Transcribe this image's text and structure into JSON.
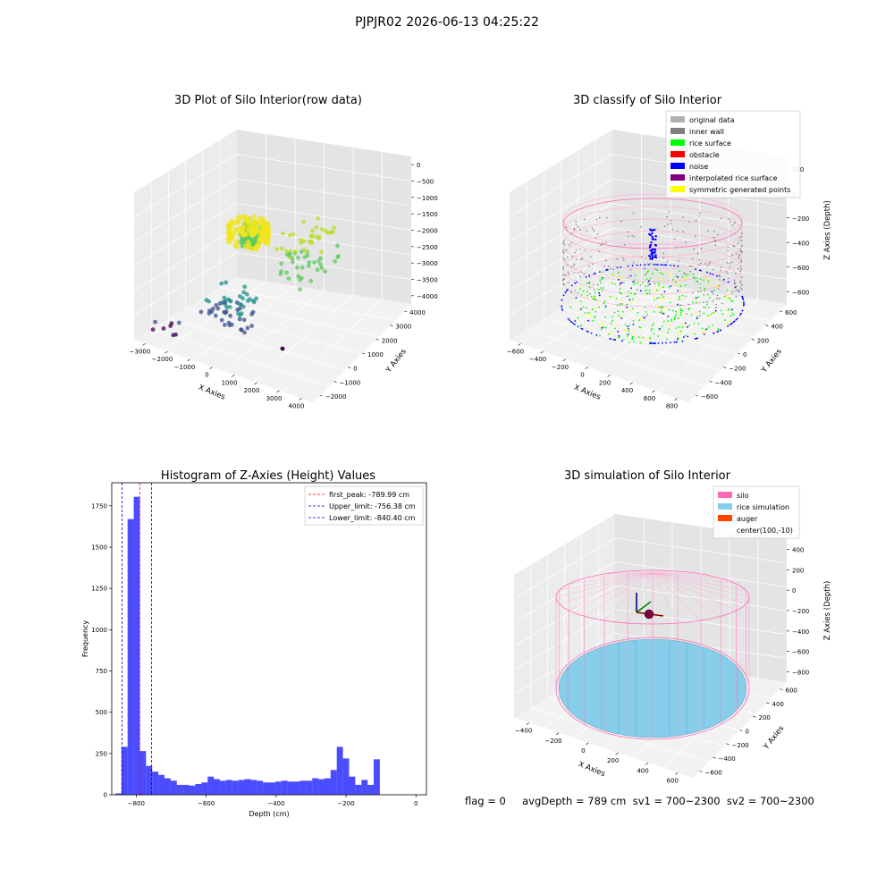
{
  "figure": {
    "suptitle": "PJPJR02 2026-06-13 04:25:22",
    "footer": "flag = 0     avgDepth = 789 cm  sv1 = 700~2300  sv2 = 700~2300"
  },
  "chart_data": [
    {
      "type": "scatter3d",
      "title": "3D Plot of Silo Interior(row data)",
      "xlabel": "X Axies",
      "ylabel": "Y Axies",
      "zlabel": "Z Axies (Depth)",
      "x_ticks": [
        "−3000",
        "−2000",
        "−1000",
        "0",
        "1000",
        "2000",
        "3000",
        "4000"
      ],
      "y_ticks": [
        "−2000",
        "−1000",
        "0",
        "1000",
        "2000",
        "3000",
        "4000"
      ],
      "z_ticks": [
        "0",
        "−500",
        "−1000",
        "−1500",
        "−2000",
        "−2500",
        "−3000",
        "−3500",
        "−4000"
      ],
      "xlim": [
        -3500,
        4500
      ],
      "ylim": [
        -2000,
        4500
      ],
      "zlim": [
        -4000,
        0
      ],
      "colormap": "viridis",
      "clusters": [
        {
          "x": [
            -600,
            0
          ],
          "y": [
            500,
            1200
          ],
          "z": [
            -1500,
            -900
          ],
          "count": 140
        },
        {
          "x": [
            1500,
            2700
          ],
          "y": [
            -300,
            2500
          ],
          "z": [
            -1800,
            -600
          ],
          "count": 70
        },
        {
          "x": [
            -1200,
            900
          ],
          "y": [
            -1500,
            400
          ],
          "z": [
            -3200,
            -2400
          ],
          "count": 60
        },
        {
          "x": [
            -3000,
            -2200
          ],
          "y": [
            -1600,
            -800
          ],
          "z": [
            -4000,
            -3500
          ],
          "count": 8
        }
      ]
    },
    {
      "type": "scatter3d",
      "title": "3D classify of Silo Interior",
      "xlabel": "X Axies",
      "ylabel": "Y Axies",
      "zlabel": "Z Axies (Depth)",
      "x_ticks": [
        "−600",
        "−400",
        "−200",
        "0",
        "200",
        "400",
        "600",
        "800"
      ],
      "y_ticks": [
        "−600",
        "−400",
        "−200",
        "0",
        "200",
        "400",
        "600"
      ],
      "z_ticks": [
        "200",
        "0",
        "−200",
        "−400",
        "−600",
        "−800"
      ],
      "xlim": [
        -650,
        850
      ],
      "ylim": [
        -700,
        700
      ],
      "zlim": [
        -900,
        300
      ],
      "legend_position": "upper right",
      "legend": [
        {
          "label": "original data",
          "color": "#b0b0b0"
        },
        {
          "label": "inner wall",
          "color": "#808080"
        },
        {
          "label": "rice surface",
          "color": "#00ff00"
        },
        {
          "label": "obstacle",
          "color": "#ff0000"
        },
        {
          "label": "noise",
          "color": "#0000ff"
        },
        {
          "label": "interpolated rice surface",
          "color": "#800080"
        },
        {
          "label": "symmetric generated points",
          "color": "#ffff00"
        }
      ]
    },
    {
      "type": "bar",
      "title": "Histogram of Z-Axies (Height) Values",
      "xlabel": "Depth (cm)",
      "ylabel": "Frequency",
      "xlim": [
        -870,
        30
      ],
      "ylim": [
        0,
        1890
      ],
      "x_ticks": [
        -800,
        -600,
        -400,
        -200,
        0
      ],
      "x_tick_labels": [
        "−800",
        "−600",
        "−400",
        "−200",
        "0"
      ],
      "y_ticks": [
        0,
        250,
        500,
        750,
        1000,
        1250,
        1500,
        1750
      ],
      "y_tick_labels": [
        "0",
        "250",
        "500",
        "750",
        "1000",
        "1250",
        "1500",
        "1750"
      ],
      "bar_color": "#0000ff",
      "bin_start": -860,
      "bin_width": 17.6,
      "values": [
        8,
        290,
        1670,
        1805,
        265,
        175,
        140,
        120,
        100,
        85,
        60,
        60,
        55,
        65,
        75,
        110,
        95,
        85,
        90,
        85,
        90,
        95,
        90,
        85,
        75,
        75,
        80,
        85,
        80,
        80,
        85,
        85,
        100,
        95,
        100,
        150,
        290,
        220,
        110,
        60,
        90,
        60,
        215
      ],
      "vlines": [
        {
          "label": "first_peak: -789.99 cm",
          "x": -789.99,
          "color": "#ff0000"
        },
        {
          "label": "Upper_limit: -756.38 cm",
          "x": -756.38,
          "color": "#0000cc"
        },
        {
          "label": "Lower_limit: -840.40 cm",
          "x": -840.4,
          "color": "#0000cc"
        }
      ],
      "legend_position": "upper right"
    },
    {
      "type": "surface3d",
      "title": "3D simulation of Silo Interior",
      "xlabel": "X Axies",
      "ylabel": "Y Axies",
      "zlabel": "Z Axies (Depth)",
      "x_ticks": [
        "−400",
        "−200",
        "0",
        "200",
        "400",
        "600"
      ],
      "y_ticks": [
        "−600",
        "−400",
        "−200",
        "0",
        "200",
        "400",
        "600"
      ],
      "z_ticks": [
        "400",
        "200",
        "0",
        "−200",
        "−400",
        "−600",
        "−800"
      ],
      "legend_position": "upper right",
      "legend": [
        {
          "label": "silo",
          "color": "#ff69b4"
        },
        {
          "label": "rice simulation",
          "color": "#87ceeb"
        },
        {
          "label": "auger",
          "color": "#ff4500"
        },
        {
          "label": "center(100,-10)",
          "color": ""
        }
      ]
    }
  ]
}
